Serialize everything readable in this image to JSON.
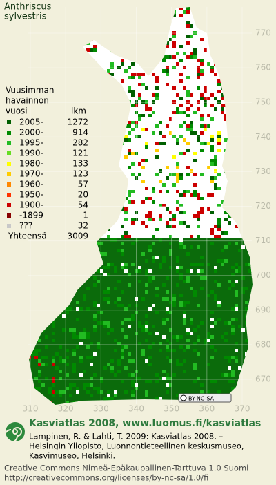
{
  "title": [
    "Anthriscus",
    "sylvestris"
  ],
  "legend": {
    "heading": [
      "Vuusimman",
      "havainnon",
      "vuosi"
    ],
    "count_heading": "lkm",
    "rows": [
      {
        "label": "2005-",
        "count": 1272,
        "color": "#005f00"
      },
      {
        "label": "2000-",
        "count": 914,
        "color": "#008a00"
      },
      {
        "label": "1995-",
        "count": 282,
        "color": "#22bb22"
      },
      {
        "label": "1990-",
        "count": 121,
        "color": "#66dd22"
      },
      {
        "label": "1980-",
        "count": 133,
        "color": "#ffff00"
      },
      {
        "label": "1970-",
        "count": 123,
        "color": "#ffcc00"
      },
      {
        "label": "1960-",
        "count": 57,
        "color": "#ff8800"
      },
      {
        "label": "1950-",
        "count": 20,
        "color": "#ff3300"
      },
      {
        "label": "1900-",
        "count": 54,
        "color": "#cc0000"
      },
      {
        "label": "-1899",
        "count": 1,
        "color": "#880000"
      },
      {
        "label": "???",
        "count": 32,
        "color": "#c8c8c8"
      }
    ],
    "total_label": "Yhteensä",
    "total": 3009
  },
  "grid": {
    "y_labels": [
      770,
      760,
      750,
      740,
      730,
      720,
      710,
      700,
      690,
      680,
      670
    ],
    "x_labels": [
      310,
      320,
      330,
      340,
      350,
      360,
      370
    ]
  },
  "license_badge": "BY-NC-SA",
  "footer": {
    "heading": "Kasviatlas 2008, www.luomus.fi/kasviatlas",
    "citation": [
      "Lampinen, R. & Lahti, T. 2009: Kasviatlas 2008. –",
      "Helsingin Yliopisto, Luonnontieteellinen keskusmuseo,",
      "Kasvimuseo, Helsinki."
    ],
    "license": [
      "Creative Commons Nimeä-Epäkaupallinen-Tarttuva 1.0 Suomi",
      "http://creativecommons.org/licenses/by-nc-sa/1.0/fi"
    ]
  }
}
